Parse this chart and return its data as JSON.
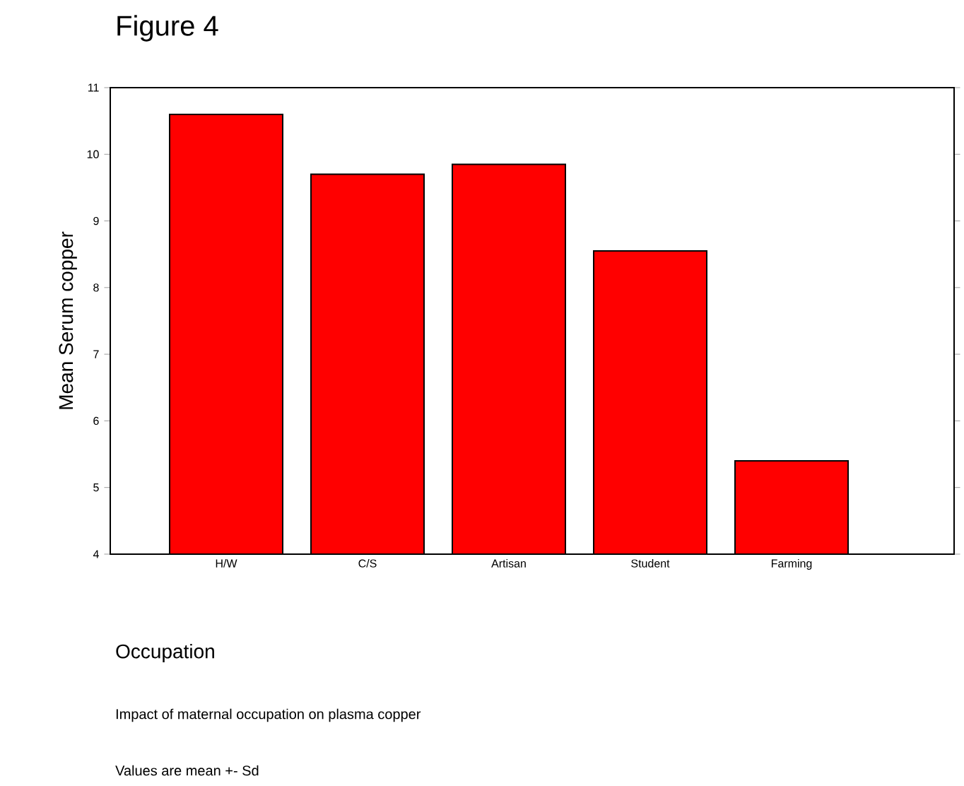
{
  "chart_data": {
    "type": "bar",
    "title": "Figure 4",
    "ylabel": "Mean Serum copper",
    "xlabel": "Occupation",
    "annotations": [
      "Impact of maternal occupation on plasma copper",
      "Values are mean +- Sd"
    ],
    "categories": [
      "H/W",
      "C/S",
      "Artisan",
      "Student",
      "Farming"
    ],
    "values": [
      10.6,
      9.7,
      9.85,
      8.55,
      5.4
    ],
    "color": "#ff0000",
    "ylim": [
      4,
      11
    ],
    "yticks": [
      4,
      5,
      6,
      7,
      8,
      9,
      10,
      11
    ],
    "grid": false
  }
}
